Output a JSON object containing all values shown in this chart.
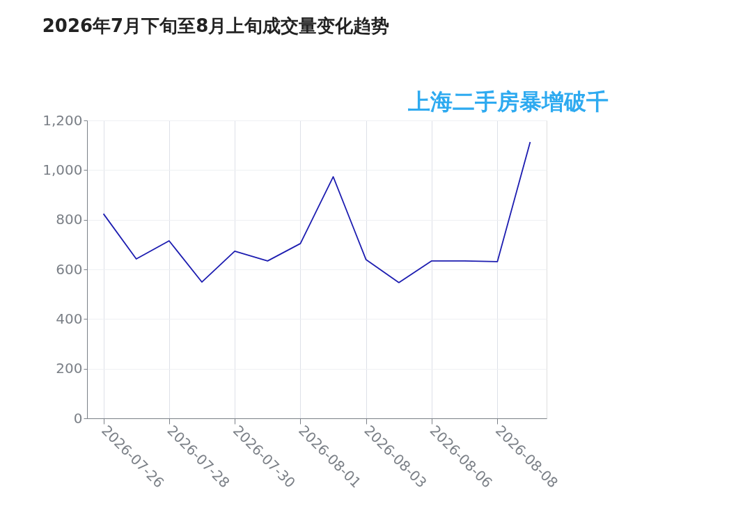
{
  "chart_data": {
    "type": "line",
    "title": "2026年7月下旬至8月上旬成交量变化趋势",
    "categories": [
      "2026-07-26",
      null,
      "2026-07-28",
      null,
      "2026-07-30",
      null,
      "2026-08-01",
      null,
      "2026-08-03",
      null,
      "2026-08-06",
      null,
      "2026-08-08",
      null
    ],
    "series": [
      {
        "color": "#1c1cb0",
        "values": [
          824,
          642,
          715,
          549,
          673,
          634,
          704,
          973,
          639,
          547,
          634,
          634,
          631,
          1113
        ]
      }
    ],
    "ylim": [
      0,
      1200
    ],
    "yticks": [
      0,
      200,
      400,
      600,
      800,
      {
        "value": 1000,
        "label": "1,000"
      },
      {
        "value": 1200,
        "label": "1,200"
      }
    ],
    "grid": true,
    "legend": false,
    "marker": "none",
    "line_style": "solid",
    "annotations": [
      "上海二手房暴增破千"
    ]
  }
}
